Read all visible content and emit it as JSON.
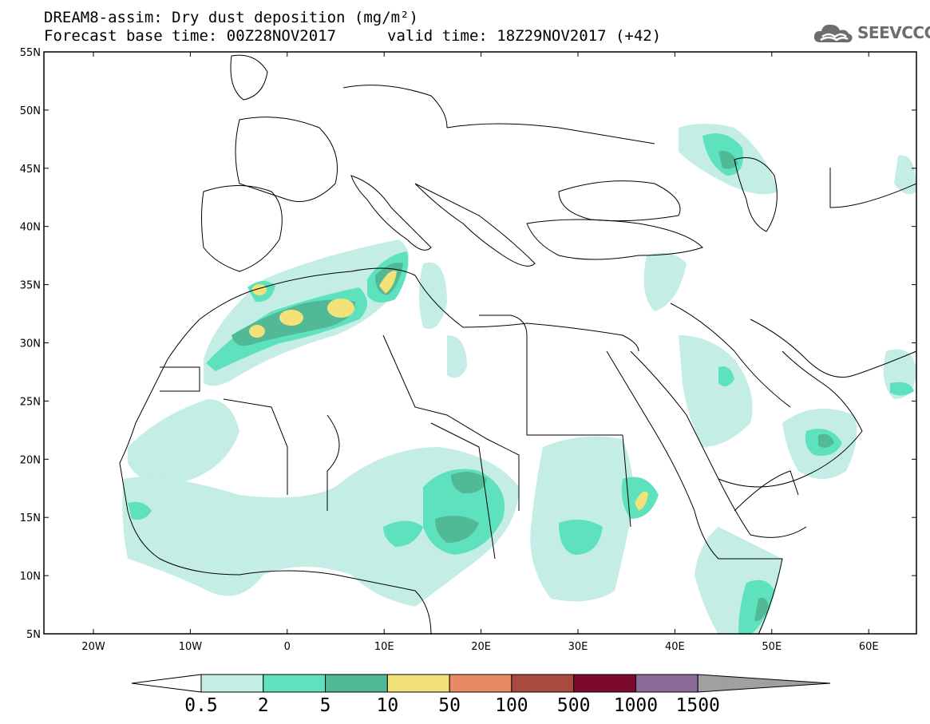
{
  "title": {
    "line1": "DREAM8-assim: Dry dust deposition (mg/m²)",
    "line2_left": "Forecast base time: 00Z28NOV2017",
    "line2_right": "valid time: 18Z29NOV2017 (+42)"
  },
  "logo": {
    "text": "SEEVCCC",
    "icon": "cloud-icon"
  },
  "axes": {
    "lat_labels": [
      "55N",
      "50N",
      "45N",
      "40N",
      "35N",
      "30N",
      "25N",
      "20N",
      "15N",
      "10N",
      "5N"
    ],
    "lon_labels": [
      "20W",
      "10W",
      "0",
      "10E",
      "20E",
      "30E",
      "40E",
      "50E",
      "60E"
    ]
  },
  "colorbar": {
    "labels": [
      "0.5",
      "2",
      "5",
      "10",
      "50",
      "100",
      "500",
      "1000",
      "1500"
    ],
    "colors": [
      "#c3ede5",
      "#5de2bd",
      "#52b996",
      "#f3e17a",
      "#e98a66",
      "#a94a3f",
      "#7c0a2c",
      "#8c6a97",
      "#a0a0a0"
    ],
    "under_color": "#ffffff",
    "over_color": "#a0a0a0"
  },
  "colors": {
    "level1": "#c3ede5",
    "level2": "#5de2bd",
    "level3": "#52b996",
    "level4": "#f3e17a",
    "coast": "#000000"
  }
}
